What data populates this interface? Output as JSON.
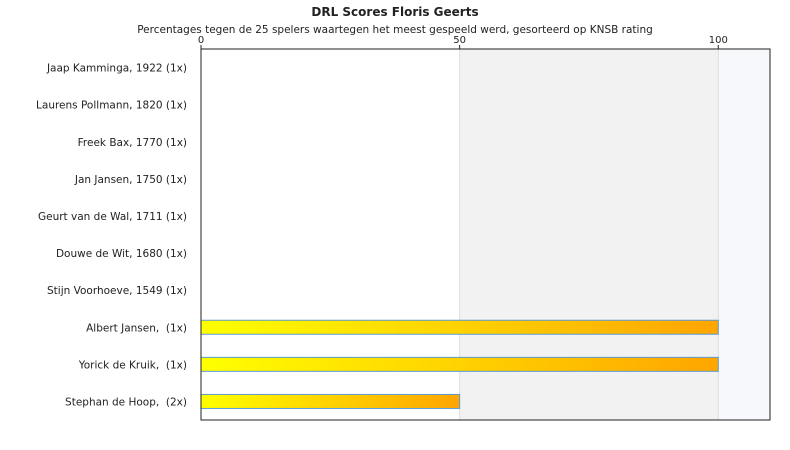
{
  "chart_data": {
    "type": "bar",
    "orientation": "horizontal",
    "title": "DRL Scores Floris Geerts",
    "subtitle": "Percentages tegen de 25 spelers waartegen het meest gespeeld werd, gesorteerd op KNSB rating",
    "xlim": [
      0,
      110
    ],
    "xticks": [
      0,
      50,
      100
    ],
    "x_axis_position": "top",
    "grid": true,
    "legend": "none",
    "categories": [
      "Jaap Kamminga, 1922 (1x)",
      "Laurens Pollmann, 1820 (1x)",
      "Freek Bax, 1770 (1x)",
      "Jan Jansen, 1750 (1x)",
      "Geurt van de Wal, 1711 (1x)",
      "Douwe de Wit, 1680 (1x)",
      "Stijn Voorhoeve, 1549 (1x)",
      "Albert Jansen,  (1x)",
      "Yorick de Kruik,  (1x)",
      "Stephan de Hoop,  (2x)"
    ],
    "values": [
      0,
      0,
      0,
      0,
      0,
      0,
      0,
      100,
      100,
      50
    ],
    "colors": {
      "bar_gradient_start": "#ffff00",
      "bar_gradient_end": "#ffa500",
      "bar_border": "#5b9bd5",
      "band_alt": "#f2f2f2",
      "band_last": "#f7f8fc",
      "gridline": "#dddddd",
      "axis": "#222222"
    }
  }
}
